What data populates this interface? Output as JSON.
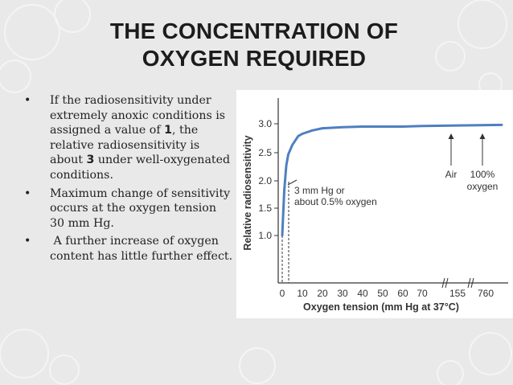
{
  "slide": {
    "title_line1": "THE CONCENTRATION OF",
    "title_line2": "OXYGEN REQUIRED",
    "bullets": [
      {
        "marker": "•",
        "p1": "If the radiosensitivity under extremely anoxic conditions is assigned a value of ",
        "b1": "1",
        "p2": ", the relative radiosensitivity is about ",
        "b2": "3",
        "p3": " under well-oxygenated conditions."
      },
      {
        "marker": "•",
        "text": "Maximum change of sensitivity occurs at the oxygen tension 30 mm Hg."
      },
      {
        "marker": "•",
        "text": " A further increase of oxygen content has little further effect."
      }
    ]
  },
  "colors": {
    "curve": "#4f7fc0",
    "background": "#e9e9e9",
    "text": "#222222"
  },
  "chart_data": {
    "type": "line",
    "xlabel": "Oxygen tension (mm Hg at 37°C)",
    "ylabel": "Relative radiosensitivity",
    "x_ticks": [
      "0",
      "10",
      "20",
      "30",
      "40",
      "50",
      "60",
      "70",
      "155",
      "760"
    ],
    "y_ticks": [
      "1.0",
      "1.5",
      "2.0",
      "2.5",
      "3.0"
    ],
    "ylim": [
      1.0,
      3.0
    ],
    "series": [
      {
        "x": [
          0,
          1,
          2,
          3,
          5,
          8,
          10,
          15,
          20,
          30,
          40,
          50,
          60,
          70,
          155,
          760
        ],
        "y": [
          1.0,
          1.8,
          2.25,
          2.45,
          2.62,
          2.78,
          2.82,
          2.88,
          2.92,
          2.94,
          2.95,
          2.95,
          2.95,
          2.96,
          2.97,
          2.98
        ]
      }
    ],
    "annotations": [
      {
        "line1": "3 mm Hg or",
        "line2": "about 0.5% oxygen"
      },
      {
        "line1": "Air"
      },
      {
        "line1": "100%",
        "line2": "oxygen"
      }
    ]
  }
}
